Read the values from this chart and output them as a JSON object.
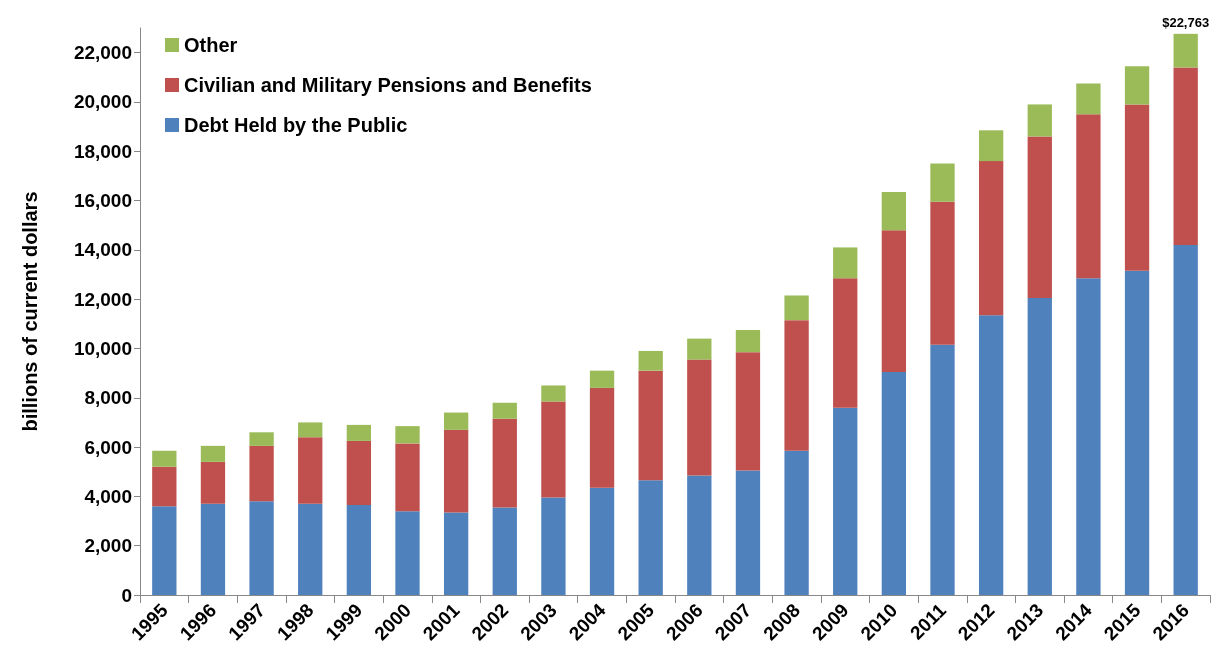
{
  "chart_data": {
    "type": "bar",
    "stacked": true,
    "ylabel": "billions of current dollars",
    "categories": [
      "1995",
      "1996",
      "1997",
      "1998",
      "1999",
      "2000",
      "2001",
      "2002",
      "2003",
      "2004",
      "2005",
      "2006",
      "2007",
      "2008",
      "2009",
      "2010",
      "2011",
      "2012",
      "2013",
      "2014",
      "2015",
      "2016"
    ],
    "series": [
      {
        "name": "Debt Held by the Public",
        "color": "#4f81bd",
        "values": [
          3600,
          3700,
          3800,
          3700,
          3650,
          3400,
          3350,
          3550,
          3950,
          4350,
          4650,
          4850,
          5050,
          5850,
          7600,
          9050,
          10150,
          11350,
          12050,
          12850,
          13150,
          14200
        ]
      },
      {
        "name": "Civilian and Military Pensions and Benefits",
        "color": "#c0504d",
        "values": [
          1600,
          1700,
          2250,
          2700,
          2600,
          2750,
          3350,
          3600,
          3900,
          4050,
          4450,
          4700,
          4800,
          5300,
          5250,
          5750,
          5800,
          6250,
          6550,
          6650,
          6750,
          7200
        ]
      },
      {
        "name": "Other",
        "color": "#9bbb59",
        "values": [
          650,
          650,
          550,
          600,
          650,
          700,
          700,
          650,
          650,
          700,
          800,
          850,
          900,
          1000,
          1250,
          1550,
          1550,
          1250,
          1300,
          1250,
          1550,
          1363
        ]
      }
    ],
    "totals": [
      null,
      null,
      null,
      null,
      null,
      null,
      null,
      null,
      null,
      null,
      null,
      null,
      null,
      null,
      null,
      null,
      null,
      null,
      null,
      null,
      null,
      "$22,763"
    ],
    "ylim": [
      0,
      23000
    ],
    "yticks": [
      0,
      {
        "value": 2000,
        "label": "2,000"
      },
      {
        "value": 4000,
        "label": "4,000"
      },
      {
        "value": 6000,
        "label": "6,000"
      },
      {
        "value": 8000,
        "label": "8,000"
      },
      {
        "value": 10000,
        "label": "10,000"
      },
      {
        "value": 12000,
        "label": "12,000"
      },
      {
        "value": 14000,
        "label": "14,000"
      },
      {
        "value": 16000,
        "label": "16,000"
      },
      {
        "value": 18000,
        "label": "18,000"
      },
      {
        "value": 20000,
        "label": "20,000"
      },
      {
        "value": 22000,
        "label": "22,000"
      }
    ],
    "grid": false,
    "legend": "top left"
  }
}
